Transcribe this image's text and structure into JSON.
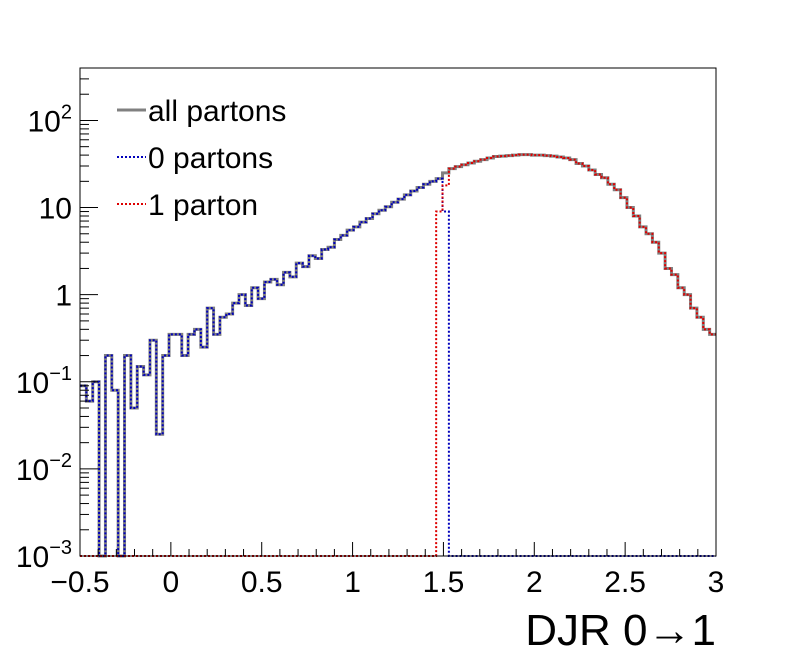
{
  "chart_data": {
    "type": "line",
    "style": "step histogram",
    "xlabel": "DJR 0→1",
    "ylabel": "",
    "xlim": [
      -0.5,
      3.0
    ],
    "ylim": [
      0.001,
      400
    ],
    "yscale": "log",
    "grid": false,
    "legend_position": "top-left",
    "x_ticks": [
      {
        "value": -0.5,
        "label": "−0.5"
      },
      {
        "value": 0,
        "label": "0"
      },
      {
        "value": 0.5,
        "label": "0.5"
      },
      {
        "value": 1,
        "label": "1"
      },
      {
        "value": 1.5,
        "label": "1.5"
      },
      {
        "value": 2,
        "label": "2"
      },
      {
        "value": 2.5,
        "label": "2.5"
      },
      {
        "value": 3,
        "label": "3"
      }
    ],
    "y_ticks": [
      {
        "value": 0.001,
        "base": "10",
        "exp": "−3",
        "text": ""
      },
      {
        "value": 0.01,
        "base": "10",
        "exp": "−2",
        "text": ""
      },
      {
        "value": 0.1,
        "base": "10",
        "exp": "−1",
        "text": ""
      },
      {
        "value": 1,
        "base": "",
        "exp": "",
        "text": "1"
      },
      {
        "value": 10,
        "base": "",
        "exp": "",
        "text": "10"
      },
      {
        "value": 100,
        "base": "10",
        "exp": "2",
        "text": ""
      }
    ],
    "bin_edges_range": [
      -0.5,
      3.0
    ],
    "n_bins": 100,
    "series": [
      {
        "name": "all partons",
        "color": "#808080",
        "line_style": "solid",
        "values": [
          0.09,
          0.06,
          0.1,
          0.001,
          0.2,
          0.08,
          0.001,
          0.2,
          0.05,
          0.15,
          0.12,
          0.3,
          0.025,
          0.2,
          0.35,
          0.35,
          0.2,
          0.35,
          0.4,
          0.25,
          0.7,
          0.35,
          0.55,
          0.6,
          0.8,
          1.0,
          0.75,
          1.2,
          0.9,
          1.4,
          1.5,
          1.3,
          1.8,
          1.6,
          2.3,
          2.1,
          2.8,
          2.6,
          3.3,
          3.5,
          4.3,
          4.8,
          5.5,
          6.0,
          6.8,
          7.5,
          8.5,
          9.3,
          10.2,
          11.5,
          12.5,
          14.0,
          15.5,
          17.0,
          18.5,
          20.0,
          21.5,
          25.0,
          28.0,
          29.5,
          31.0,
          32.5,
          34.0,
          35.5,
          37.0,
          38.5,
          39.0,
          39.5,
          40.0,
          40.5,
          40.5,
          40.0,
          40.0,
          39.5,
          39.0,
          38.0,
          37.0,
          35.5,
          32.0,
          30.0,
          27.0,
          24.0,
          22.0,
          18.5,
          16.0,
          13.0,
          10.0,
          8.0,
          6.0,
          5.0,
          4.0,
          3.0,
          2.0,
          1.7,
          1.2,
          1.0,
          0.7,
          0.55,
          0.4,
          0.35
        ]
      },
      {
        "name": "0 partons",
        "color": "#0000bb",
        "line_style": "dotted",
        "values": [
          0.09,
          0.06,
          0.1,
          0.001,
          0.2,
          0.08,
          0.001,
          0.2,
          0.05,
          0.15,
          0.12,
          0.3,
          0.025,
          0.2,
          0.35,
          0.35,
          0.2,
          0.35,
          0.4,
          0.25,
          0.7,
          0.35,
          0.55,
          0.6,
          0.8,
          1.0,
          0.75,
          1.2,
          0.9,
          1.4,
          1.5,
          1.3,
          1.8,
          1.6,
          2.3,
          2.1,
          2.8,
          2.6,
          3.3,
          3.5,
          4.3,
          4.8,
          5.5,
          6.0,
          6.8,
          7.5,
          8.5,
          9.3,
          10.2,
          11.5,
          12.5,
          14.0,
          15.5,
          17.0,
          18.5,
          20.0,
          21.5,
          9.0,
          0.001,
          0.001,
          0.001,
          0.001,
          0.001,
          0.001,
          0.001,
          0.001,
          0.001,
          0.001,
          0.001,
          0.001,
          0.001,
          0.001,
          0.001,
          0.001,
          0.001,
          0.001,
          0.001,
          0.001,
          0.001,
          0.001,
          0.001,
          0.001,
          0.001,
          0.001,
          0.001,
          0.001,
          0.001,
          0.001,
          0.001,
          0.001,
          0.001,
          0.001,
          0.001,
          0.001,
          0.001,
          0.001,
          0.001,
          0.001,
          0.001,
          0.001
        ]
      },
      {
        "name": "1 parton",
        "color": "#dd0000",
        "line_style": "dotted",
        "values": [
          0.001,
          0.001,
          0.001,
          0.001,
          0.001,
          0.001,
          0.001,
          0.001,
          0.001,
          0.001,
          0.001,
          0.001,
          0.001,
          0.001,
          0.001,
          0.001,
          0.001,
          0.001,
          0.001,
          0.001,
          0.001,
          0.001,
          0.001,
          0.001,
          0.001,
          0.001,
          0.001,
          0.001,
          0.001,
          0.001,
          0.001,
          0.001,
          0.001,
          0.001,
          0.001,
          0.001,
          0.001,
          0.001,
          0.001,
          0.001,
          0.001,
          0.001,
          0.001,
          0.001,
          0.001,
          0.001,
          0.001,
          0.001,
          0.001,
          0.001,
          0.001,
          0.001,
          0.001,
          0.001,
          0.001,
          0.001,
          9.0,
          18.0,
          28.0,
          29.5,
          31.0,
          32.5,
          34.0,
          35.5,
          37.0,
          38.5,
          39.0,
          39.5,
          40.0,
          40.5,
          40.5,
          40.0,
          40.0,
          39.5,
          39.0,
          38.0,
          37.0,
          35.5,
          32.0,
          30.0,
          27.0,
          24.0,
          22.0,
          18.5,
          16.0,
          13.0,
          10.0,
          8.0,
          6.0,
          5.0,
          4.0,
          3.0,
          2.0,
          1.7,
          1.2,
          1.0,
          0.7,
          0.55,
          0.4,
          0.35
        ]
      }
    ]
  }
}
